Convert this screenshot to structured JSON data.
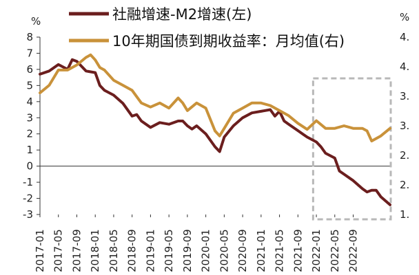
{
  "chart_data": {
    "type": "line",
    "title": "",
    "left_unit": "%",
    "right_unit": "%",
    "left_axis": {
      "min": -3,
      "max": 8,
      "ticks": [
        "8",
        "7",
        "6",
        "5",
        "4",
        "3",
        "2",
        "1",
        "0",
        "-1",
        "-2",
        "-3"
      ]
    },
    "right_axis": {
      "min": 1.0,
      "max": 4.5,
      "ticks": [
        "4.",
        "4.",
        "3.",
        "3.",
        "2.",
        "2.",
        "1."
      ]
    },
    "x_ticks": [
      "2017-01",
      "2017-05",
      "2017-09",
      "2018-01",
      "2018-05",
      "2018-09",
      "2019-01",
      "2019-05",
      "2019-09",
      "2020-01",
      "2020-05",
      "2020-09",
      "2021-01",
      "2021-05",
      "2021-09",
      "2022-01",
      "2022-05",
      "2022-09"
    ],
    "series": [
      {
        "name": "社融增速-M2增速(左)",
        "axis": "left",
        "color": "#6B1E1E",
        "x": [
          0,
          2,
          4,
          6,
          7,
          8,
          10,
          12,
          13,
          14,
          16,
          18,
          20,
          21,
          22,
          24,
          26,
          28,
          30,
          31,
          32,
          33,
          34,
          36,
          38,
          39,
          40,
          42,
          44,
          46,
          48,
          50,
          51,
          52,
          53,
          54,
          56,
          57,
          58,
          60,
          61,
          62,
          64,
          65,
          66,
          68,
          70,
          71,
          72,
          73,
          74,
          76
        ],
        "values": [
          5.7,
          5.9,
          6.3,
          6.0,
          6.6,
          6.5,
          5.9,
          5.8,
          5.0,
          4.7,
          4.4,
          3.9,
          3.1,
          3.2,
          2.8,
          2.4,
          2.7,
          2.6,
          2.8,
          2.8,
          2.5,
          2.3,
          2.5,
          2.0,
          1.2,
          0.9,
          1.8,
          2.5,
          3.0,
          3.3,
          3.4,
          3.5,
          3.1,
          3.4,
          2.8,
          2.6,
          2.2,
          2.0,
          1.8,
          1.5,
          1.2,
          0.8,
          0.5,
          -0.3,
          -0.5,
          -0.9,
          -1.4,
          -1.6,
          -1.5,
          -1.5,
          -1.9,
          -2.4
        ]
      },
      {
        "name": "10年期国债到期收益率：月均值(右)",
        "axis": "right",
        "color": "#C9923A",
        "x": [
          0,
          2,
          4,
          6,
          8,
          10,
          11,
          12,
          13,
          14,
          16,
          18,
          20,
          22,
          24,
          26,
          28,
          30,
          31,
          32,
          34,
          36,
          38,
          39,
          40,
          42,
          44,
          46,
          48,
          50,
          52,
          54,
          56,
          58,
          60,
          62,
          64,
          66,
          68,
          70,
          71,
          72,
          74,
          76
        ],
        "values": [
          3.4,
          3.55,
          3.85,
          3.85,
          3.95,
          4.1,
          4.15,
          4.05,
          3.9,
          3.85,
          3.65,
          3.55,
          3.45,
          3.2,
          3.12,
          3.2,
          3.1,
          3.3,
          3.2,
          3.05,
          3.2,
          3.1,
          2.65,
          2.55,
          2.7,
          3.0,
          3.1,
          3.2,
          3.2,
          3.15,
          3.05,
          2.95,
          2.8,
          2.68,
          2.85,
          2.7,
          2.7,
          2.75,
          2.7,
          2.7,
          2.65,
          2.45,
          2.55,
          2.7
        ]
      }
    ],
    "highlight_box": {
      "x_start": 59,
      "x_end": 76
    }
  }
}
